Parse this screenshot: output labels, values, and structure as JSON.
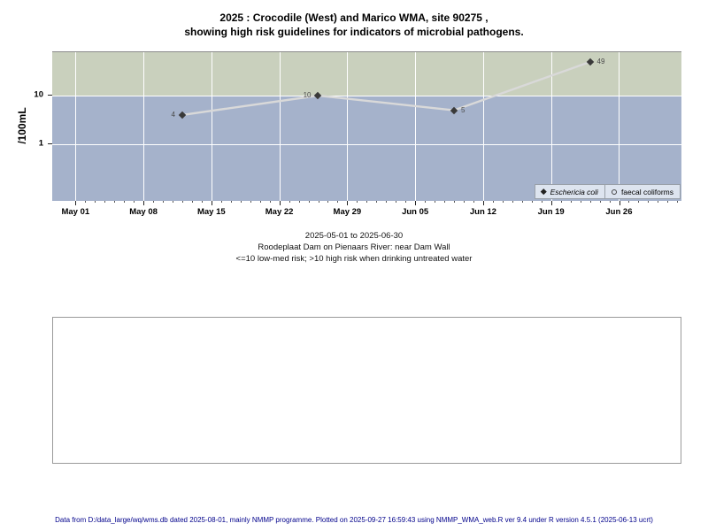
{
  "title": {
    "line1": "2025 : Crocodile (West) and Marico WMA, site 90275 ,",
    "line2": "showing high risk guidelines for indicators of microbial pathogens."
  },
  "subtitle": {
    "period": "2025-05-01 to 2025-06-30",
    "site": "Roodeplaat Dam on Pienaars River: near Dam Wall",
    "risk_note": "<=10 low-med risk; >10 high risk when drinking untreated water"
  },
  "footer": {
    "text": "Data from D:/data_large/wq/wms.db dated 2025-08-01, mainly NMMP programme. Plotted on 2025-09-27 16:59:43 using NMMP_WMA_web.R ver 9.4 under R version 4.5.1 (2025-06-13 ucrt)"
  },
  "chart_data": {
    "type": "line",
    "title": "2025 : Crocodile (West) and Marico WMA, site 90275 , showing high risk guidelines for indicators of microbial pathogens.",
    "ylabel": "/100mL",
    "y_scale": "log10",
    "y_ticks": [
      10,
      1
    ],
    "ylim": [
      0.07,
      74
    ],
    "x_range": [
      "2025-05-01",
      "2025-06-30"
    ],
    "x_major_ticks": [
      {
        "day": 0,
        "label": "May 01"
      },
      {
        "day": 7,
        "label": "May 08"
      },
      {
        "day": 14,
        "label": "May 15"
      },
      {
        "day": 21,
        "label": "May 22"
      },
      {
        "day": 28,
        "label": "May 29"
      },
      {
        "day": 35,
        "label": "Jun 05"
      },
      {
        "day": 42,
        "label": "Jun 12"
      },
      {
        "day": 49,
        "label": "Jun 19"
      },
      {
        "day": 56,
        "label": "Jun 26"
      }
    ],
    "x_minor_ticks": {
      "first_day": 0,
      "last_day": 62,
      "step_days": 1
    },
    "threshold": 10,
    "bands": [
      {
        "name": "high-risk-zone",
        "above": 10,
        "color": "#c9d0bd"
      },
      {
        "name": "low-med-risk-zone",
        "below": 10,
        "color": "#a5b2cb"
      }
    ],
    "series": [
      {
        "name": "Eschericia coli",
        "marker": "filled-diamond",
        "points": [
          {
            "date": "2025-05-12",
            "day": 11,
            "value": 4,
            "label": "4",
            "label_side": "left"
          },
          {
            "date": "2025-05-26",
            "day": 25,
            "value": 10,
            "label": "10",
            "label_side": "left"
          },
          {
            "date": "2025-06-09",
            "day": 39,
            "value": 5,
            "label": "5",
            "label_side": "right"
          },
          {
            "date": "2025-06-23",
            "day": 53,
            "value": 49,
            "label": "49",
            "label_side": "right"
          }
        ]
      },
      {
        "name": "faecal coliforms",
        "marker": "open-circle",
        "points": []
      }
    ],
    "legend": {
      "position": "bottom-right",
      "items": [
        "Eschericia coli",
        "faecal coliforms"
      ]
    },
    "colors": {
      "band_high": "#c9d0bd",
      "band_low": "#a5b2cb",
      "gridline": "#ffffff",
      "series_line": "#d9d9d9",
      "marker": "#3a3a3a",
      "point_label": "#4a4a4a",
      "legend_bg": "#dde4ef",
      "legend_border": "#99a0a8",
      "footer_text": "#00008b"
    }
  }
}
